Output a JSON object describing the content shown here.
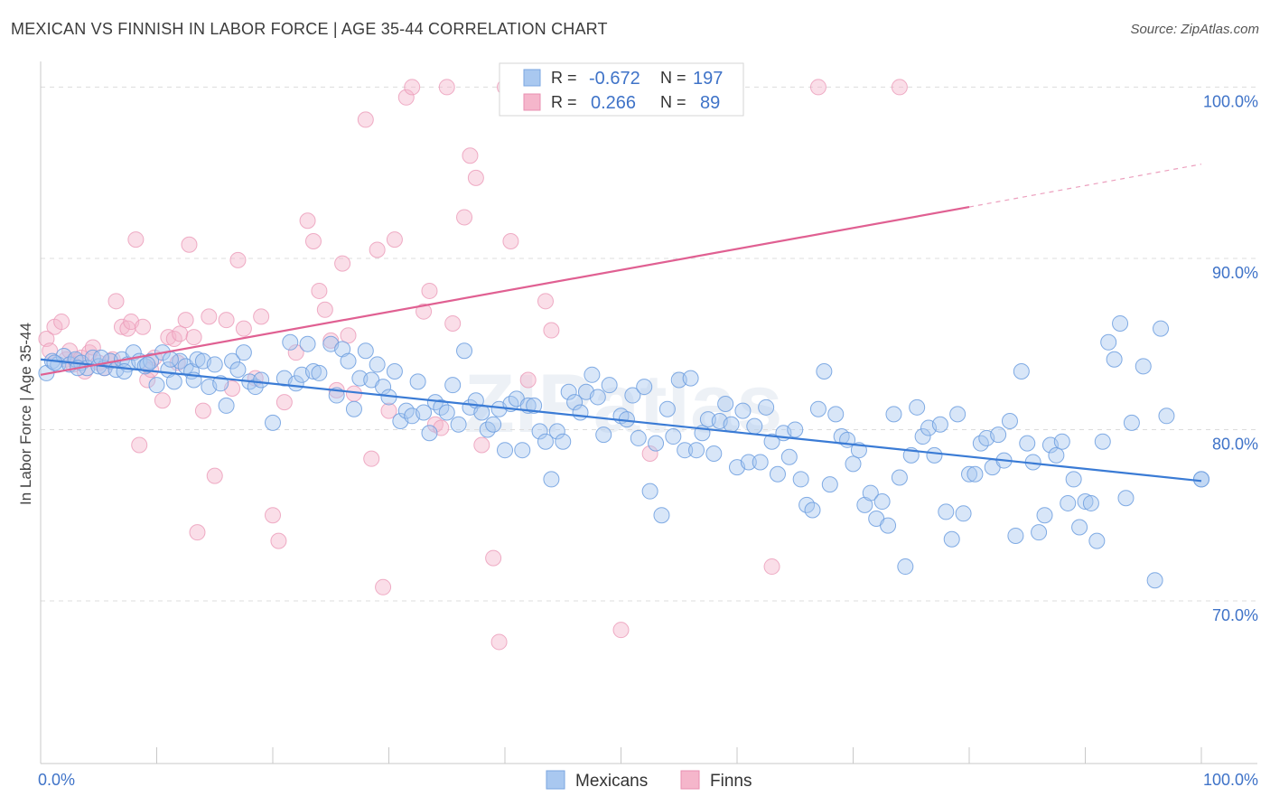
{
  "title": "MEXICAN VS FINNISH IN LABOR FORCE | AGE 35-44 CORRELATION CHART",
  "source": "Source: ZipAtlas.com",
  "watermark": "ZIPatlas",
  "legend_top": {
    "rows": [
      {
        "r_label": "R =",
        "r_value": "-0.672",
        "n_label": "N =",
        "n_value": "197",
        "color": "#a9c8f0"
      },
      {
        "r_label": "R =",
        "r_value": "0.266",
        "n_label": "N =",
        "n_value": "89",
        "color": "#f5b6cb"
      }
    ]
  },
  "legend_bottom": [
    {
      "label": "Mexicans",
      "color": "#a9c8f0"
    },
    {
      "label": "Finns",
      "color": "#f5b6cb"
    }
  ],
  "chart_data": {
    "type": "scatter",
    "xlabel": "",
    "ylabel": "In Labor Force | Age 35-44",
    "x_tick_labels": [
      "0.0%",
      "100.0%"
    ],
    "y_tick_labels": [
      "70.0%",
      "80.0%",
      "90.0%",
      "100.0%"
    ],
    "y_ticks": [
      70,
      80,
      90,
      100
    ],
    "xlim": [
      0,
      100
    ],
    "ylim": [
      60.5,
      101.5
    ],
    "grid": "horizontal dashed",
    "colors": {
      "mexicans": "#3a7bd5",
      "mexicans_fill": "#a9c8f0",
      "finns": "#e06092",
      "finns_fill": "#f5b6cb"
    },
    "series": [
      {
        "name": "Mexicans",
        "trend": {
          "x": [
            0,
            100
          ],
          "y": [
            84.1,
            77.0
          ]
        },
        "points": [
          [
            0.5,
            83.3
          ],
          [
            1,
            84
          ],
          [
            1.5,
            83.8
          ],
          [
            2,
            84.3
          ],
          [
            2.5,
            83.8
          ],
          [
            3,
            84.1
          ],
          [
            3.5,
            83.9
          ],
          [
            4,
            83.6
          ],
          [
            4.5,
            84.2
          ],
          [
            5,
            83.7
          ],
          [
            5.5,
            83.6
          ],
          [
            6,
            84
          ],
          [
            6.5,
            83.5
          ],
          [
            7,
            84.1
          ],
          [
            7.5,
            83.8
          ],
          [
            8,
            84.5
          ],
          [
            8.5,
            84
          ],
          [
            9,
            83.7
          ],
          [
            9.5,
            84
          ],
          [
            10,
            82.6
          ],
          [
            10.5,
            84.5
          ],
          [
            11,
            83.5
          ],
          [
            11.5,
            82.8
          ],
          [
            12,
            84
          ],
          [
            12.5,
            83.7
          ],
          [
            13,
            83.4
          ],
          [
            13.5,
            84.1
          ],
          [
            14,
            84
          ],
          [
            14.5,
            82.5
          ],
          [
            15,
            83.8
          ],
          [
            15.5,
            82.7
          ],
          [
            16,
            81.4
          ],
          [
            16.5,
            84
          ],
          [
            17,
            83.5
          ],
          [
            17.5,
            84.5
          ],
          [
            18,
            82.8
          ],
          [
            18.5,
            82.5
          ],
          [
            19,
            82.9
          ],
          [
            20,
            80.4
          ],
          [
            21,
            83
          ],
          [
            21.5,
            85.1
          ],
          [
            22,
            82.7
          ],
          [
            22.5,
            83.2
          ],
          [
            23,
            85
          ],
          [
            23.5,
            83.4
          ],
          [
            24,
            83.3
          ],
          [
            25,
            85
          ],
          [
            25.5,
            82
          ],
          [
            26,
            84.7
          ],
          [
            26.5,
            84
          ],
          [
            27,
            81.2
          ],
          [
            27.5,
            83
          ],
          [
            28,
            84.6
          ],
          [
            28.5,
            82.9
          ],
          [
            29,
            83.8
          ],
          [
            29.5,
            82.5
          ],
          [
            30,
            81.9
          ],
          [
            30.5,
            83.4
          ],
          [
            31,
            80.5
          ],
          [
            31.5,
            81.1
          ],
          [
            32,
            80.8
          ],
          [
            32.5,
            82.8
          ],
          [
            33,
            81
          ],
          [
            33.5,
            79.8
          ],
          [
            34,
            81.6
          ],
          [
            34.5,
            81.3
          ],
          [
            35,
            81
          ],
          [
            35.5,
            82.6
          ],
          [
            36,
            80.3
          ],
          [
            36.5,
            84.6
          ],
          [
            37,
            81.3
          ],
          [
            37.5,
            81.7
          ],
          [
            38,
            81
          ],
          [
            38.5,
            80
          ],
          [
            39,
            80.3
          ],
          [
            39.5,
            81.2
          ],
          [
            40,
            78.8
          ],
          [
            40.5,
            81.5
          ],
          [
            41,
            81.8
          ],
          [
            41.5,
            78.8
          ],
          [
            42,
            81.4
          ],
          [
            42.5,
            81.4
          ],
          [
            43,
            79.9
          ],
          [
            43.5,
            79.3
          ],
          [
            44,
            77.1
          ],
          [
            44.5,
            79.9
          ],
          [
            45,
            79.3
          ],
          [
            45.5,
            82.2
          ],
          [
            46,
            81.6
          ],
          [
            46.5,
            81
          ],
          [
            47,
            82.2
          ],
          [
            47.5,
            83.2
          ],
          [
            48,
            81.9
          ],
          [
            48.5,
            79.7
          ],
          [
            49,
            82.6
          ],
          [
            50,
            80.8
          ],
          [
            50.5,
            80.6
          ],
          [
            51,
            82
          ],
          [
            51.5,
            79.5
          ],
          [
            52,
            82.5
          ],
          [
            52.5,
            76.4
          ],
          [
            53,
            79.2
          ],
          [
            53.5,
            75
          ],
          [
            54,
            81.2
          ],
          [
            54.5,
            79.6
          ],
          [
            55,
            82.9
          ],
          [
            55.5,
            78.8
          ],
          [
            56,
            83
          ],
          [
            56.5,
            78.8
          ],
          [
            57,
            79.8
          ],
          [
            57.5,
            80.6
          ],
          [
            58,
            78.6
          ],
          [
            58.5,
            80.5
          ],
          [
            59,
            81.5
          ],
          [
            59.5,
            80.3
          ],
          [
            60,
            77.8
          ],
          [
            60.5,
            81.1
          ],
          [
            61,
            78.1
          ],
          [
            61.5,
            80.2
          ],
          [
            62,
            78.1
          ],
          [
            62.5,
            81.3
          ],
          [
            63,
            79.3
          ],
          [
            63.5,
            77.4
          ],
          [
            64,
            79.8
          ],
          [
            64.5,
            78.4
          ],
          [
            65,
            80
          ],
          [
            65.5,
            77.1
          ],
          [
            66,
            75.6
          ],
          [
            66.5,
            75.3
          ],
          [
            67,
            81.2
          ],
          [
            67.5,
            83.4
          ],
          [
            68,
            76.8
          ],
          [
            68.5,
            80.9
          ],
          [
            69,
            79.6
          ],
          [
            69.5,
            79.4
          ],
          [
            70,
            78
          ],
          [
            70.5,
            78.8
          ],
          [
            71,
            75.6
          ],
          [
            71.5,
            76.3
          ],
          [
            72,
            74.8
          ],
          [
            72.5,
            75.8
          ],
          [
            73,
            74.4
          ],
          [
            73.5,
            80.9
          ],
          [
            74,
            77.2
          ],
          [
            74.5,
            72
          ],
          [
            75,
            78.5
          ],
          [
            75.5,
            81.3
          ],
          [
            76,
            79.6
          ],
          [
            76.5,
            80.1
          ],
          [
            77,
            78.5
          ],
          [
            77.5,
            80.3
          ],
          [
            78,
            75.2
          ],
          [
            78.5,
            73.6
          ],
          [
            79,
            80.9
          ],
          [
            79.5,
            75.1
          ],
          [
            80,
            77.4
          ],
          [
            80.5,
            77.4
          ],
          [
            81,
            79.2
          ],
          [
            81.5,
            79.5
          ],
          [
            82,
            77.8
          ],
          [
            82.5,
            79.7
          ],
          [
            83,
            78.2
          ],
          [
            83.5,
            80.5
          ],
          [
            84,
            73.8
          ],
          [
            84.5,
            83.4
          ],
          [
            85,
            79.2
          ],
          [
            85.5,
            78.1
          ],
          [
            86,
            74
          ],
          [
            86.5,
            75
          ],
          [
            87,
            79.1
          ],
          [
            87.5,
            78.5
          ],
          [
            88,
            79.3
          ],
          [
            88.5,
            75.7
          ],
          [
            89,
            77.1
          ],
          [
            89.5,
            74.3
          ],
          [
            90,
            75.8
          ],
          [
            90.5,
            75.7
          ],
          [
            91,
            73.5
          ],
          [
            91.5,
            79.3
          ],
          [
            92,
            85.1
          ],
          [
            92.5,
            84.1
          ],
          [
            93,
            86.2
          ],
          [
            93.5,
            76
          ],
          [
            94,
            80.4
          ],
          [
            95,
            83.7
          ],
          [
            96,
            71.2
          ],
          [
            96.5,
            85.9
          ],
          [
            97,
            80.8
          ],
          [
            100,
            77.1
          ],
          [
            100,
            77.1
          ],
          [
            1.2,
            83.9
          ],
          [
            3.2,
            83.6
          ],
          [
            5.2,
            84.2
          ],
          [
            7.2,
            83.4
          ],
          [
            9.2,
            83.8
          ],
          [
            11.2,
            84.1
          ],
          [
            13.2,
            82.9
          ]
        ]
      },
      {
        "name": "Finns",
        "trend": {
          "x": [
            0,
            80
          ],
          "y": [
            83.2,
            93.0
          ]
        },
        "trend_extension": {
          "x": [
            80,
            100
          ],
          "y": [
            93.0,
            95.5
          ]
        },
        "points": [
          [
            0.5,
            85.3
          ],
          [
            0.8,
            84.6
          ],
          [
            1.2,
            86
          ],
          [
            1.8,
            86.3
          ],
          [
            2.2,
            84.1
          ],
          [
            2.5,
            84.6
          ],
          [
            3,
            84
          ],
          [
            3.5,
            84.2
          ],
          [
            3.8,
            83.4
          ],
          [
            4.2,
            84.5
          ],
          [
            4.5,
            84.8
          ],
          [
            5,
            83.9
          ],
          [
            5.5,
            83.6
          ],
          [
            6,
            84
          ],
          [
            6.5,
            87.5
          ],
          [
            7,
            86
          ],
          [
            7.5,
            85.9
          ],
          [
            7.8,
            86.3
          ],
          [
            8.2,
            91.1
          ],
          [
            8.5,
            79.1
          ],
          [
            8.8,
            86
          ],
          [
            9.2,
            82.9
          ],
          [
            9.8,
            84.2
          ],
          [
            10.5,
            81.7
          ],
          [
            11,
            85.4
          ],
          [
            11.5,
            85.3
          ],
          [
            12,
            85.6
          ],
          [
            12.5,
            86.4
          ],
          [
            12.8,
            90.8
          ],
          [
            13.2,
            85.4
          ],
          [
            13.5,
            74
          ],
          [
            14,
            81.1
          ],
          [
            14.5,
            86.6
          ],
          [
            15,
            77.3
          ],
          [
            16,
            86.4
          ],
          [
            16.5,
            82.4
          ],
          [
            17,
            89.9
          ],
          [
            17.5,
            85.9
          ],
          [
            18.5,
            83
          ],
          [
            19,
            86.6
          ],
          [
            20,
            75
          ],
          [
            20.5,
            73.5
          ],
          [
            21,
            81.6
          ],
          [
            22,
            84.5
          ],
          [
            23,
            92.2
          ],
          [
            23.5,
            91
          ],
          [
            24,
            88.1
          ],
          [
            24.5,
            87
          ],
          [
            25,
            85.2
          ],
          [
            25.5,
            82.3
          ],
          [
            26,
            89.7
          ],
          [
            26.5,
            85.5
          ],
          [
            27,
            82.1
          ],
          [
            28,
            98.1
          ],
          [
            28.5,
            78.3
          ],
          [
            29,
            90.5
          ],
          [
            29.5,
            70.8
          ],
          [
            30,
            81.1
          ],
          [
            30.5,
            91.1
          ],
          [
            31.5,
            99.4
          ],
          [
            32,
            100
          ],
          [
            33,
            86.9
          ],
          [
            33.5,
            88.1
          ],
          [
            34,
            80.3
          ],
          [
            34.5,
            80.1
          ],
          [
            35,
            100
          ],
          [
            35.5,
            86.2
          ],
          [
            36.5,
            92.4
          ],
          [
            37,
            96
          ],
          [
            37.5,
            94.7
          ],
          [
            38,
            79.1
          ],
          [
            39,
            72.5
          ],
          [
            39.5,
            67.6
          ],
          [
            40,
            100
          ],
          [
            40.5,
            91
          ],
          [
            42,
            82.9
          ],
          [
            43.5,
            87.5
          ],
          [
            44,
            85.8
          ],
          [
            45,
            100
          ],
          [
            47,
            100
          ],
          [
            50,
            68.3
          ],
          [
            52.5,
            78.6
          ],
          [
            63,
            72
          ],
          [
            67,
            100
          ],
          [
            74,
            100
          ],
          [
            2.8,
            83.8
          ],
          [
            6.2,
            84.1
          ],
          [
            9.5,
            83.5
          ],
          [
            11.8,
            83.9
          ]
        ]
      }
    ]
  }
}
